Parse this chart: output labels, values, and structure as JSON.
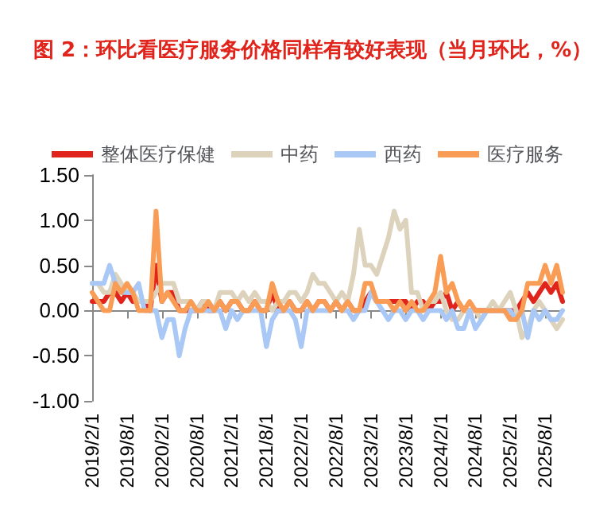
{
  "chart_data": {
    "type": "line",
    "title": "图 2：环比看医疗服务价格同样有较好表现（当月环比，%）",
    "categories": [
      "2019/2/1",
      null,
      null,
      null,
      null,
      null,
      "2019/8/1",
      null,
      null,
      null,
      null,
      null,
      "2020/2/1",
      null,
      null,
      null,
      null,
      null,
      "2020/8/1",
      null,
      null,
      null,
      null,
      null,
      "2021/2/1",
      null,
      null,
      null,
      null,
      null,
      "2021/8/1",
      null,
      null,
      null,
      null,
      null,
      "2022/2/1",
      null,
      null,
      null,
      null,
      null,
      "2022/8/1",
      null,
      null,
      null,
      null,
      null,
      "2023/2/1",
      null,
      null,
      null,
      null,
      null,
      "2023/8/1",
      null,
      null,
      null,
      null,
      null,
      "2024/2/1",
      null,
      null,
      null,
      null,
      null,
      "2024/8/1",
      null,
      null,
      null,
      null,
      null,
      "2025/2/1",
      null,
      null,
      null,
      null,
      null,
      "2025/8/1",
      null,
      null,
      null
    ],
    "series": [
      {
        "name": "整体医疗保健",
        "color": "#e0241b",
        "values": [
          0.1,
          0.1,
          0.1,
          0.2,
          0.2,
          0.1,
          0.2,
          0.1,
          0.1,
          0.1,
          0.0,
          0.5,
          0.1,
          0.2,
          0.2,
          0.0,
          0.0,
          0.0,
          0.0,
          0.1,
          0.0,
          0.0,
          0.1,
          0.0,
          0.1,
          0.1,
          0.0,
          0.0,
          0.1,
          0.0,
          0.0,
          0.2,
          0.0,
          0.0,
          0.1,
          0.0,
          0.0,
          0.1,
          0.0,
          0.1,
          0.1,
          0.0,
          0.1,
          0.0,
          0.1,
          0.0,
          0.0,
          0.1,
          0.2,
          0.1,
          0.1,
          0.1,
          0.1,
          0.1,
          0.1,
          0.0,
          0.1,
          0.1,
          0.0,
          0.1,
          0.1,
          0.2,
          0.0,
          0.1,
          0.0,
          0.0,
          0.0,
          0.0,
          0.0,
          0.0,
          0.0,
          0.0,
          0.0,
          0.0,
          0.1,
          0.2,
          0.1,
          0.2,
          0.3,
          0.2,
          0.3,
          0.1
        ]
      },
      {
        "name": "中药",
        "color": "#ddd3bc",
        "values": [
          0.3,
          0.3,
          0.2,
          0.2,
          0.4,
          0.3,
          0.2,
          0.2,
          0.1,
          0.1,
          0.1,
          0.2,
          0.3,
          0.3,
          0.3,
          0.1,
          0.1,
          0.1,
          0.0,
          0.1,
          0.1,
          0.0,
          0.2,
          0.2,
          0.2,
          0.1,
          0.2,
          0.1,
          0.2,
          0.1,
          0.1,
          0.0,
          0.1,
          0.1,
          0.2,
          0.2,
          0.1,
          0.2,
          0.4,
          0.3,
          0.3,
          0.2,
          0.1,
          0.2,
          0.1,
          0.4,
          0.9,
          0.5,
          0.5,
          0.4,
          0.6,
          0.8,
          1.1,
          0.9,
          1.0,
          0.2,
          0.2,
          0.0,
          0.1,
          0.1,
          0.2,
          0.0,
          -0.1,
          -0.1,
          0.0,
          0.0,
          0.0,
          -0.1,
          0.0,
          0.1,
          0.0,
          0.1,
          0.2,
          0.0,
          -0.3,
          -0.2,
          0.0,
          0.1,
          0.0,
          -0.1,
          -0.2,
          -0.1
        ]
      },
      {
        "name": "西药",
        "color": "#a9c8f5",
        "values": [
          0.3,
          0.3,
          0.3,
          0.5,
          0.3,
          0.2,
          0.2,
          0.2,
          0.3,
          0.0,
          0.0,
          0.0,
          -0.3,
          -0.1,
          -0.1,
          -0.5,
          -0.2,
          0.0,
          0.0,
          0.0,
          0.0,
          0.0,
          0.0,
          -0.2,
          0.0,
          -0.1,
          0.0,
          0.0,
          0.0,
          0.0,
          -0.4,
          -0.1,
          0.0,
          0.0,
          0.0,
          -0.1,
          -0.4,
          0.0,
          0.0,
          0.0,
          0.0,
          0.0,
          0.1,
          0.0,
          0.0,
          -0.1,
          0.0,
          0.0,
          0.2,
          0.1,
          0.0,
          -0.1,
          0.0,
          0.0,
          -0.1,
          0.0,
          0.0,
          -0.1,
          0.0,
          0.0,
          0.0,
          -0.1,
          0.0,
          -0.2,
          -0.2,
          0.0,
          -0.2,
          -0.1,
          0.0,
          0.0,
          0.0,
          0.0,
          0.0,
          -0.1,
          0.0,
          -0.3,
          0.0,
          -0.1,
          0.0,
          -0.1,
          -0.1,
          0.0
        ]
      },
      {
        "name": "医疗服务",
        "color": "#f99d56",
        "values": [
          0.2,
          0.1,
          0.0,
          0.0,
          0.3,
          0.2,
          0.3,
          0.2,
          0.0,
          0.0,
          0.0,
          1.1,
          0.1,
          0.2,
          0.1,
          0.0,
          0.0,
          0.1,
          0.0,
          0.0,
          0.1,
          0.0,
          0.1,
          0.0,
          0.1,
          0.1,
          0.0,
          0.0,
          0.1,
          0.0,
          0.0,
          0.3,
          0.1,
          0.0,
          0.1,
          0.0,
          0.0,
          0.1,
          0.0,
          0.1,
          0.1,
          0.0,
          0.1,
          0.0,
          0.1,
          0.0,
          0.0,
          0.3,
          0.3,
          0.1,
          0.1,
          0.1,
          0.0,
          0.1,
          0.0,
          0.1,
          0.0,
          0.0,
          0.1,
          0.2,
          0.6,
          0.2,
          0.3,
          0.1,
          0.0,
          0.1,
          0.0,
          0.0,
          0.0,
          0.0,
          0.0,
          0.0,
          -0.1,
          -0.1,
          0.0,
          0.3,
          0.3,
          0.3,
          0.5,
          0.3,
          0.5,
          0.2
        ]
      }
    ],
    "ylim": [
      -1,
      1.5
    ],
    "yticks": [
      {
        "value": -1,
        "label": "-1.00"
      },
      {
        "value": -0.5,
        "label": "-0.50"
      },
      {
        "value": 0,
        "label": "0.00"
      },
      {
        "value": 0.5,
        "label": "0.50"
      },
      {
        "value": 1,
        "label": "1.00"
      },
      {
        "value": 1.5,
        "label": "1.50"
      }
    ],
    "legend": "top",
    "marker": "none",
    "line_style": "solid"
  }
}
